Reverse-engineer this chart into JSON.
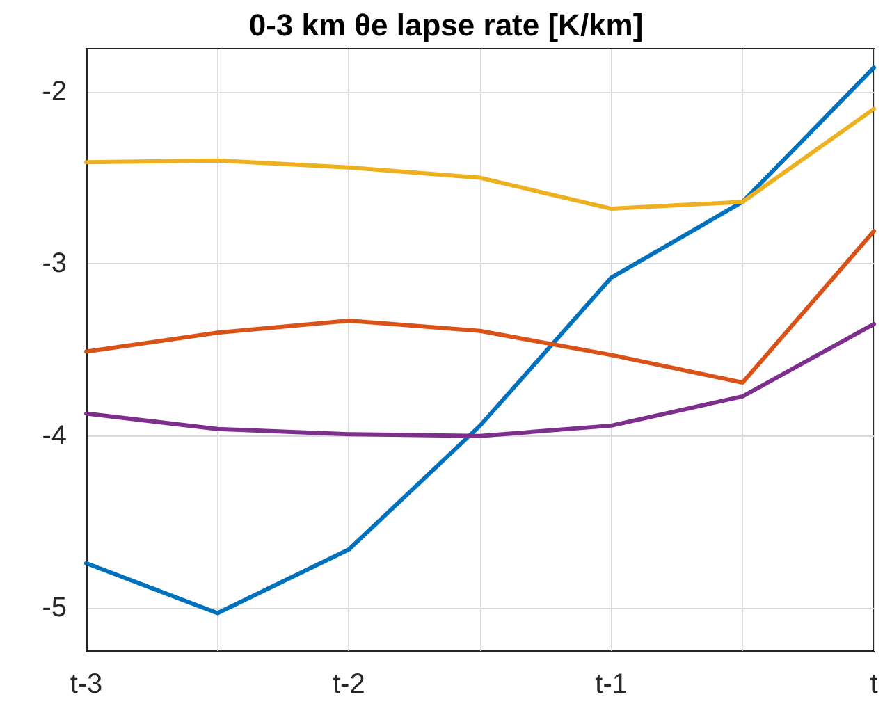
{
  "chart_data": {
    "type": "line",
    "title": "0-3 km θe lapse rate [K/km]",
    "categories": [
      "t-3",
      null,
      "t-2",
      null,
      "t-1",
      null,
      "t"
    ],
    "series": [
      {
        "color": "#0072bd",
        "values": [
          -4.74,
          -5.03,
          -4.66,
          -3.94,
          -3.08,
          -2.64,
          -1.86
        ]
      },
      {
        "color": "#edb120",
        "values": [
          -2.41,
          -2.4,
          -2.44,
          -2.5,
          -2.68,
          -2.64,
          -2.1
        ]
      },
      {
        "color": "#d95319",
        "values": [
          -3.51,
          -3.4,
          -3.33,
          -3.39,
          -3.53,
          -3.69,
          -2.81
        ]
      },
      {
        "color": "#7e2f8e",
        "values": [
          -3.87,
          -3.96,
          -3.99,
          -4.0,
          -3.94,
          -3.77,
          -3.35
        ]
      }
    ],
    "ylim": [
      -5.25,
      -1.75
    ],
    "yticks": [
      -5,
      -4,
      -3,
      -2
    ],
    "grid": true,
    "marker": "none",
    "line_style": "solid"
  }
}
